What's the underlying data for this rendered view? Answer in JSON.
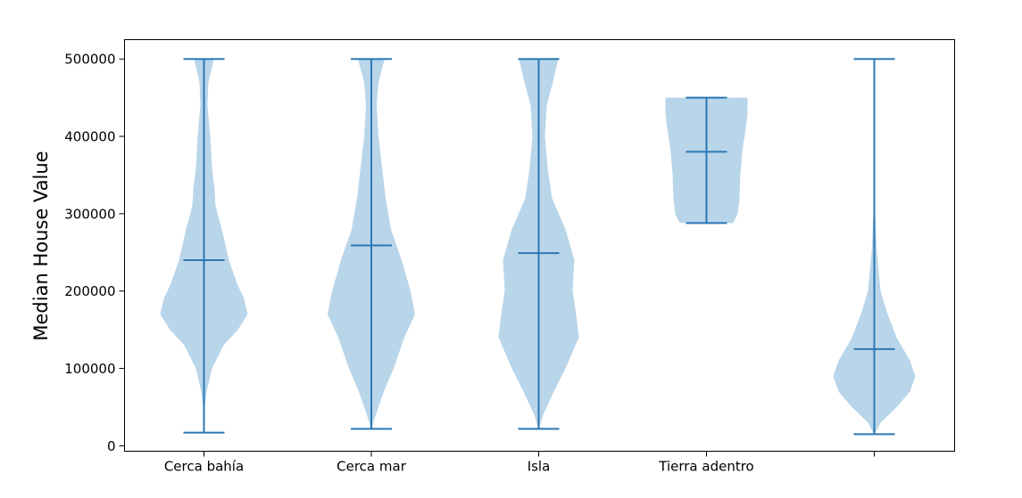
{
  "chart_data": {
    "type": "violin",
    "title": "",
    "xlabel": "",
    "ylabel": "Median House Value",
    "ylim": [
      -7000,
      525000
    ],
    "yticks": [
      0,
      100000,
      200000,
      300000,
      400000,
      500000
    ],
    "categories": [
      "Cerca bahía",
      "Cerca mar",
      "Isla",
      "Tierra adentro",
      ""
    ],
    "colors": {
      "body": "#b9d5e9",
      "lines": "#2a78b5",
      "frame": "#000000"
    },
    "grid": false,
    "violins": [
      {
        "category": "Cerca bahía",
        "min": 17000,
        "median": 240000,
        "max": 500000,
        "profile": [
          [
            17000,
            0.2
          ],
          [
            50000,
            1
          ],
          [
            70000,
            3
          ],
          [
            100000,
            9
          ],
          [
            130000,
            22
          ],
          [
            150000,
            38
          ],
          [
            170000,
            49
          ],
          [
            190000,
            45
          ],
          [
            210000,
            37
          ],
          [
            240000,
            28
          ],
          [
            280000,
            20
          ],
          [
            310000,
            13
          ],
          [
            330000,
            12
          ],
          [
            360000,
            9
          ],
          [
            400000,
            7
          ],
          [
            440000,
            4
          ],
          [
            470000,
            5
          ],
          [
            500000,
            11
          ]
        ]
      },
      {
        "category": "Cerca mar",
        "min": 22000,
        "median": 259000,
        "max": 500000,
        "profile": [
          [
            22000,
            0.2
          ],
          [
            40000,
            5
          ],
          [
            70000,
            14
          ],
          [
            100000,
            25
          ],
          [
            140000,
            37
          ],
          [
            170000,
            49
          ],
          [
            200000,
            44
          ],
          [
            240000,
            34
          ],
          [
            280000,
            22
          ],
          [
            320000,
            16
          ],
          [
            360000,
            12
          ],
          [
            400000,
            8
          ],
          [
            440000,
            6
          ],
          [
            470000,
            8
          ],
          [
            500000,
            15
          ]
        ]
      },
      {
        "category": "Isla",
        "min": 22000,
        "median": 249000,
        "max": 500000,
        "profile": [
          [
            22000,
            0.2
          ],
          [
            40000,
            5
          ],
          [
            70000,
            17
          ],
          [
            100000,
            30
          ],
          [
            140000,
            45
          ],
          [
            170000,
            42
          ],
          [
            200000,
            38
          ],
          [
            240000,
            40
          ],
          [
            280000,
            30
          ],
          [
            320000,
            15
          ],
          [
            360000,
            10
          ],
          [
            400000,
            7
          ],
          [
            440000,
            9
          ],
          [
            470000,
            16
          ],
          [
            500000,
            22
          ]
        ]
      },
      {
        "category": "Tierra adentro",
        "min": 288000,
        "median": 380000,
        "max": 450000,
        "profile": [
          [
            288000,
            30
          ],
          [
            300000,
            35
          ],
          [
            320000,
            37
          ],
          [
            350000,
            38
          ],
          [
            380000,
            40
          ],
          [
            410000,
            44
          ],
          [
            430000,
            46
          ],
          [
            450000,
            46
          ]
        ]
      },
      {
        "category": "",
        "min": 15000,
        "median": 125000,
        "max": 500000,
        "profile": [
          [
            15000,
            0.3
          ],
          [
            30000,
            7
          ],
          [
            50000,
            25
          ],
          [
            70000,
            40
          ],
          [
            90000,
            46
          ],
          [
            110000,
            40
          ],
          [
            140000,
            25
          ],
          [
            170000,
            15
          ],
          [
            200000,
            7
          ],
          [
            250000,
            3
          ],
          [
            300000,
            1
          ],
          [
            400000,
            0.5
          ],
          [
            500000,
            0.2
          ]
        ]
      }
    ]
  }
}
